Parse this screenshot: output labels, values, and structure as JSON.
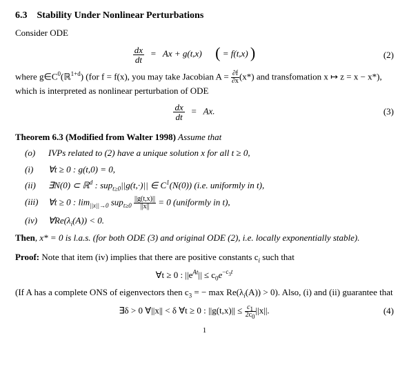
{
  "section": {
    "number": "6.3",
    "title": "Stability Under Nonlinear Perturbations"
  },
  "para_consider": "Consider ODE",
  "eq2": {
    "lhs_num": "dx",
    "lhs_den": "dt",
    "eq": "=",
    "rhs1": "Ax + g(t,x)",
    "paren_eq": "= f(t,x)",
    "number": "(2)"
  },
  "para_where_1": "where g∈C",
  "para_where_sup1": "0",
  "para_where_2": "(ℝ",
  "para_where_sup2": "1+d",
  "para_where_3": ") (for f = f(x), you may take Jacobian A = ",
  "jacobian_num": "∂f",
  "jacobian_den": "∂x",
  "para_where_4": "(x*) and transfomation x ↦ z = x − x*),",
  "para_where_5": "which is interpreted as nonlinear perturbation of ODE",
  "eq3": {
    "lhs_num": "dx",
    "lhs_den": "dt",
    "eq": "=",
    "rhs": "Ax.",
    "number": "(3)"
  },
  "theorem": {
    "head_bold": "Theorem 6.3 (Modified from Walter 1998)",
    "head_italic": " Assume that",
    "items": [
      {
        "label": "(o)",
        "body": "IVPs related to (2) have a unique solution x for all t ≥ 0,"
      },
      {
        "label": "(i)",
        "body": "∀t ≥ 0 : g(t,0) = 0,"
      },
      {
        "label": "(ii)",
        "body_pre": "∃N(0) ⊂ ℝ",
        "body_sup": "d",
        "body_mid": " : sup",
        "body_sub": "t≥0",
        "body_post": "||g(t,·)|| ∈ C",
        "body_sup2": "1",
        "body_tail": "(N(0)) (i.e. uniformly in t),"
      },
      {
        "label": "(iii)",
        "body_pre": "∀t ≥ 0 : lim",
        "body_sub1": "||x||→0",
        "body_mid": " sup",
        "body_sub2": "t≥0",
        "frac_num": "||g(t,x)||",
        "frac_den": "||x||",
        "body_post": " = 0 (uniformly in t),"
      },
      {
        "label": "(iv)",
        "body_pre": "∀Re(λ",
        "body_sub": "i",
        "body_post": "(A)) < 0."
      }
    ]
  },
  "then": {
    "pre_bold": "Then",
    "rest_italic": ", x* = 0 is l.a.s. (for both ODE (3) and original ODE (2), i.e. locally exponentially stable)."
  },
  "proof": {
    "head_bold": "Proof:",
    "head_rest": " Note that item (iv) implies that there are positive constants c",
    "head_sub": "i",
    "head_tail": " such that"
  },
  "eq_exp": {
    "pre": "∀t ≥ 0 :   ||e",
    "sup": "At",
    "mid": "||   ≤   c",
    "sub0": "0",
    "mid2": "e",
    "sup2": "−c",
    "sup2_sub": "3",
    "sup2_tail": "t"
  },
  "para_ifA_1": "(If A has a complete ONS of eigenvectors then c",
  "para_ifA_sub1": "3",
  "para_ifA_2": " = − max Re(λ",
  "para_ifA_sub2": "i",
  "para_ifA_3": "(A)) > 0). Also, (i) and (ii) guarantee that",
  "eq4": {
    "pre": "∃δ > 0 ∀||x|| < δ ∀t ≥ 0  :  ||g(t,x)||   ≤   ",
    "frac_num_pre": "c",
    "frac_num_sub": "1",
    "frac_den_pre": "2c",
    "frac_den_sub": "0",
    "post": "||x||.",
    "number": "(4)"
  },
  "page_number": "1"
}
